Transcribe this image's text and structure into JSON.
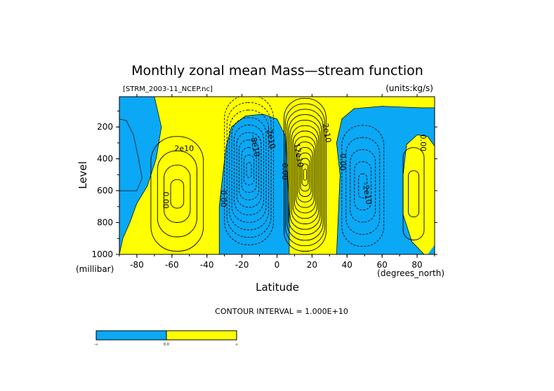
{
  "chart_data": {
    "type": "contour",
    "title": "Monthly zonal mean Mass—stream function",
    "file_label": "[STRM_2003-11_NCEP.nc]",
    "units_label": "(units:kg/s)",
    "xlabel": "Latitude",
    "xunits": "(degrees_north)",
    "ylabel": "Level",
    "yunits": "(millibar)",
    "xlim": [
      -90,
      90
    ],
    "ylim": [
      1000,
      10
    ],
    "y_inverted": true,
    "xticks": [
      -80,
      -60,
      -40,
      -20,
      0,
      20,
      40,
      60,
      80
    ],
    "yticks": [
      200,
      400,
      600,
      800,
      1000
    ],
    "contour_interval_text": "CONTOUR INTERVAL = 1.000E+10",
    "fill_colors": {
      "negative": "#0aa8f5",
      "positive": "#ffff00"
    },
    "colorbar": {
      "labels": [
        "-∞",
        "0.0",
        "∞"
      ],
      "colors": [
        "#0aa8f5",
        "#ffff00"
      ]
    },
    "cells": [
      {
        "name": "southern-polar-cell-negative",
        "lat": -86,
        "p": 700,
        "sign": -1,
        "peak": "-1e10"
      },
      {
        "name": "southern-ferrel-cell-positive",
        "lat": -57,
        "p": 620,
        "sign": 1,
        "peak": "4e10"
      },
      {
        "name": "southern-hadley-cell-negative",
        "lat": -15,
        "p": 450,
        "sign": -1,
        "peak": "-11e10"
      },
      {
        "name": "northern-hadley-cell-positive",
        "lat": 15,
        "p": 500,
        "sign": 1,
        "peak": "15e10"
      },
      {
        "name": "northern-ferrel-cell-negative",
        "lat": 48,
        "p": 560,
        "sign": -1,
        "peak": "-5e10"
      },
      {
        "name": "northern-polar-cell-positive",
        "lat": 77,
        "p": 600,
        "sign": 1,
        "peak": "2e10"
      }
    ],
    "contour_labels": [
      {
        "text": "2e10",
        "lat": -53,
        "p": 350
      },
      {
        "text": "0.00",
        "lat": -65,
        "p": 660
      },
      {
        "text": "0.00",
        "lat": -32,
        "p": 650
      },
      {
        "text": "-8e10",
        "lat": -14,
        "p": 320
      },
      {
        "text": "-2e10",
        "lat": -5,
        "p": 270
      },
      {
        "text": "0.00",
        "lat": 3,
        "p": 480
      },
      {
        "text": "12e10",
        "lat": 11,
        "p": 380
      },
      {
        "text": "2e10",
        "lat": 27,
        "p": 240
      },
      {
        "text": "0.00",
        "lat": 36,
        "p": 420
      },
      {
        "text": "-2e10",
        "lat": 50,
        "p": 620
      },
      {
        "text": "0.00",
        "lat": 82,
        "p": 300
      }
    ]
  }
}
